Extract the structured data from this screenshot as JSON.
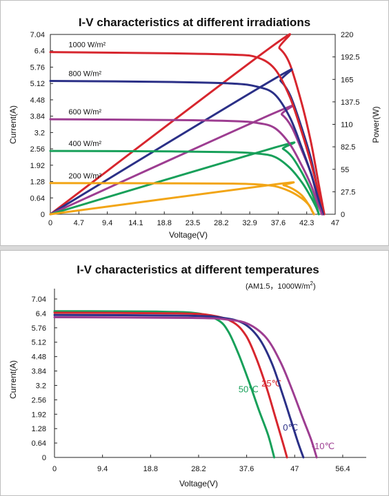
{
  "chart_data": [
    {
      "type": "line",
      "title": "I-V characteristics at different irradiations",
      "xlabel": "Voltage(V)",
      "ylabel": "Current(A)",
      "y2label": "Power(W)",
      "xlim": [
        0,
        47
      ],
      "ylim": [
        0,
        7.04
      ],
      "y2lim": [
        0,
        220
      ],
      "xticks": [
        "0",
        "4.7",
        "9.4",
        "14.1",
        "18.8",
        "23.5",
        "28.2",
        "32.9",
        "37.6",
        "42.3",
        "47"
      ],
      "yticks": [
        "0",
        "0.64",
        "1.28",
        "1.92",
        "2.56",
        "3.2",
        "3.84",
        "4.48",
        "5.12",
        "5.76",
        "6.4",
        "7.04"
      ],
      "y2ticks": [
        "0",
        "27.5",
        "55",
        "82.5",
        "110",
        "137.5",
        "165",
        "192.5",
        "220"
      ],
      "grid": false,
      "series": [
        {
          "name": "1000 W/m²",
          "color": "#d7262e",
          "iv": [
            [
              0,
              6.35
            ],
            [
              20,
              6.3
            ],
            [
              30,
              6.25
            ],
            [
              34,
              6.15
            ],
            [
              37,
              5.7
            ],
            [
              39.5,
              4.6
            ],
            [
              41.5,
              3.2
            ],
            [
              43,
              2.0
            ],
            [
              44.2,
              0.9
            ],
            [
              45.2,
              0
            ]
          ],
          "pv": [
            [
              0,
              0
            ],
            [
              36.5,
              205
            ],
            [
              37.8,
              203
            ],
            [
              39.5,
              184
            ],
            [
              41.5,
              135
            ],
            [
              43,
              88
            ],
            [
              44.2,
              40
            ],
            [
              45.2,
              0
            ]
          ]
        },
        {
          "name": "800 W/m²",
          "color": "#2b3087",
          "iv": [
            [
              0,
              5.22
            ],
            [
              20,
              5.18
            ],
            [
              30,
              5.12
            ],
            [
              34,
              5.0
            ],
            [
              37,
              4.7
            ],
            [
              39.5,
              3.8
            ],
            [
              41.5,
              2.6
            ],
            [
              43,
              1.6
            ],
            [
              44.1,
              0.7
            ],
            [
              45.0,
              0
            ]
          ],
          "pv": [
            [
              0,
              0
            ],
            [
              36.8,
              165
            ],
            [
              38,
              163
            ],
            [
              39.6,
              145
            ],
            [
              41.5,
              105
            ],
            [
              43,
              68
            ],
            [
              44.1,
              30
            ],
            [
              45.0,
              0
            ]
          ]
        },
        {
          "name": "600 W/m²",
          "color": "#9d3d91",
          "iv": [
            [
              0,
              3.72
            ],
            [
              20,
              3.69
            ],
            [
              30,
              3.65
            ],
            [
              34,
              3.58
            ],
            [
              37,
              3.38
            ],
            [
              39.5,
              2.75
            ],
            [
              41.5,
              1.9
            ],
            [
              43,
              1.15
            ],
            [
              44.0,
              0.5
            ],
            [
              44.8,
              0
            ]
          ],
          "pv": [
            [
              0,
              0
            ],
            [
              37.0,
              124
            ],
            [
              38.2,
              122
            ],
            [
              39.8,
              107
            ],
            [
              41.5,
              78
            ],
            [
              43,
              50
            ],
            [
              44.0,
              22
            ],
            [
              44.8,
              0
            ]
          ]
        },
        {
          "name": "400 W/m²",
          "color": "#18a05a",
          "iv": [
            [
              0,
              2.48
            ],
            [
              20,
              2.46
            ],
            [
              30,
              2.43
            ],
            [
              34,
              2.38
            ],
            [
              37,
              2.25
            ],
            [
              39.5,
              1.82
            ],
            [
              41.5,
              1.25
            ],
            [
              42.8,
              0.75
            ],
            [
              43.8,
              0.3
            ],
            [
              44.3,
              0
            ]
          ],
          "pv": [
            [
              0,
              0
            ],
            [
              37.2,
              82
            ],
            [
              38.4,
              80
            ],
            [
              39.9,
              70
            ],
            [
              41.5,
              51
            ],
            [
              42.8,
              32
            ],
            [
              43.8,
              13
            ],
            [
              44.3,
              0
            ]
          ]
        },
        {
          "name": "200 W/m²",
          "color": "#f2a516",
          "iv": [
            [
              0,
              1.22
            ],
            [
              20,
              1.21
            ],
            [
              30,
              1.2
            ],
            [
              34,
              1.17
            ],
            [
              37,
              1.1
            ],
            [
              39.5,
              0.9
            ],
            [
              41.5,
              0.62
            ],
            [
              42.7,
              0.35
            ],
            [
              43.2,
              0.12
            ],
            [
              43.5,
              0
            ]
          ],
          "pv": [
            [
              0,
              0
            ],
            [
              37.0,
              36.5
            ],
            [
              38.5,
              35.5
            ],
            [
              40.0,
              31
            ],
            [
              41.5,
              23
            ],
            [
              42.6,
              12
            ],
            [
              43.2,
              4
            ],
            [
              43.5,
              0
            ]
          ]
        }
      ]
    },
    {
      "type": "line",
      "title": "I-V characteristics at different temperatures",
      "subtitle": "(AM1.5，1000W/m",
      "subtitle_sup": "2",
      "subtitle_end": ")",
      "xlabel": "Voltage(V)",
      "ylabel": "Current(A)",
      "xlim": [
        0,
        61
      ],
      "ylim": [
        0,
        7.5
      ],
      "xticks": [
        "0",
        "9.4",
        "18.8",
        "28.2",
        "37.6",
        "47",
        "56.4"
      ],
      "xtick_values": [
        0,
        9.4,
        18.8,
        28.2,
        37.6,
        47,
        56.4
      ],
      "yticks": [
        "0",
        "0.64",
        "1.28",
        "1.92",
        "2.56",
        "3.2",
        "3.84",
        "4.48",
        "5.12",
        "5.76",
        "6.4",
        "7.04"
      ],
      "grid": false,
      "series": [
        {
          "name": "50℃",
          "color": "#18a05a",
          "iv": [
            [
              0,
              6.5
            ],
            [
              20,
              6.48
            ],
            [
              28,
              6.4
            ],
            [
              32,
              6.1
            ],
            [
              34,
              5.6
            ],
            [
              36,
              4.6
            ],
            [
              38,
              3.4
            ],
            [
              40,
              2.1
            ],
            [
              41.8,
              1.0
            ],
            [
              43.0,
              0
            ]
          ]
        },
        {
          "name": "25℃",
          "color": "#d7262e",
          "iv": [
            [
              0,
              6.43
            ],
            [
              24,
              6.4
            ],
            [
              31,
              6.3
            ],
            [
              35,
              6.0
            ],
            [
              37.5,
              5.4
            ],
            [
              39.5,
              4.4
            ],
            [
              41.5,
              3.1
            ],
            [
              43.2,
              1.8
            ],
            [
              44.5,
              0.8
            ],
            [
              45.5,
              0
            ]
          ]
        },
        {
          "name": "0℃",
          "color": "#2b3087",
          "iv": [
            [
              0,
              6.33
            ],
            [
              26,
              6.3
            ],
            [
              33,
              6.2
            ],
            [
              37,
              5.95
            ],
            [
              40,
              5.3
            ],
            [
              42.5,
              4.2
            ],
            [
              44.5,
              2.9
            ],
            [
              46.2,
              1.7
            ],
            [
              47.6,
              0.7
            ],
            [
              48.7,
              0
            ]
          ]
        },
        {
          "name": "-10℃",
          "color": "#9d3d91",
          "iv": [
            [
              0,
              6.23
            ],
            [
              27,
              6.2
            ],
            [
              34,
              6.12
            ],
            [
              38,
              5.92
            ],
            [
              41.5,
              5.3
            ],
            [
              44.3,
              4.2
            ],
            [
              46.5,
              3.0
            ],
            [
              48.5,
              1.8
            ],
            [
              50.2,
              0.8
            ],
            [
              51.3,
              0
            ]
          ]
        }
      ]
    }
  ]
}
